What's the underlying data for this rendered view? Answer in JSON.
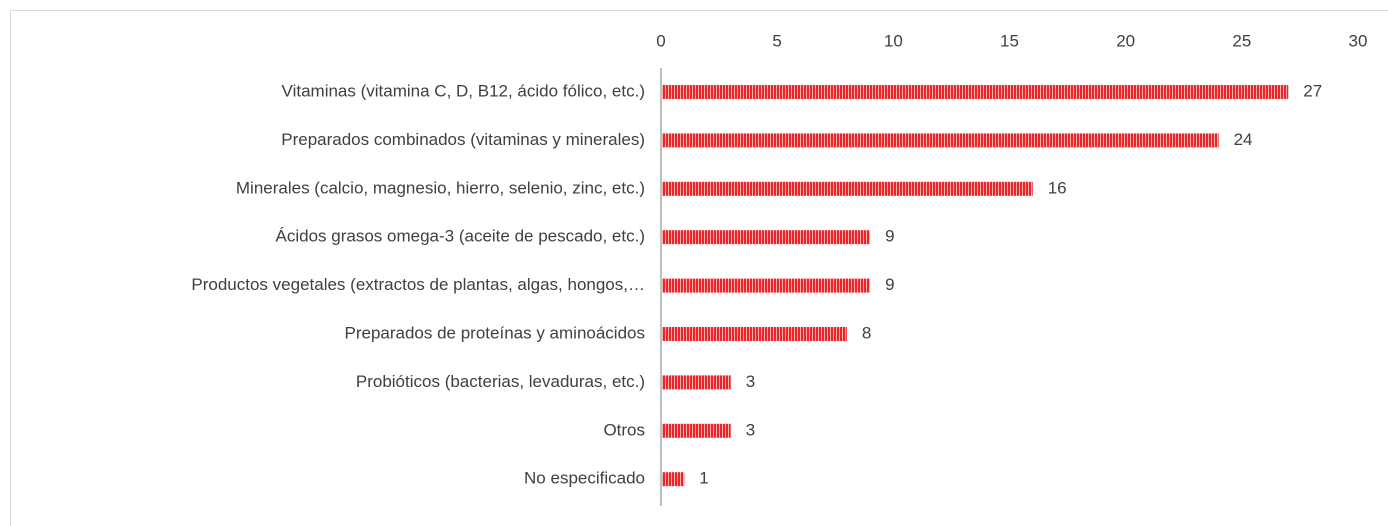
{
  "chart_data": {
    "type": "bar",
    "orientation": "horizontal",
    "categories": [
      "Vitaminas (vitamina C, D, B12, ácido fólico, etc.)",
      "Preparados combinados (vitaminas y minerales)",
      "Minerales (calcio, magnesio, hierro, selenio, zinc, etc.)",
      "Ácidos grasos omega-3 (aceite de pescado, etc.)",
      "Productos vegetales (extractos de plantas, algas, hongos,…",
      "Preparados de proteínas y aminoácidos",
      "Probióticos (bacterias, levaduras, etc.)",
      "Otros",
      "No especificado"
    ],
    "values": [
      27,
      24,
      16,
      9,
      9,
      8,
      3,
      3,
      1
    ],
    "color": "#e8262a",
    "xlim": [
      0,
      30
    ],
    "xticks": [
      0,
      5,
      10,
      15,
      20,
      25,
      30
    ],
    "grid": false
  }
}
